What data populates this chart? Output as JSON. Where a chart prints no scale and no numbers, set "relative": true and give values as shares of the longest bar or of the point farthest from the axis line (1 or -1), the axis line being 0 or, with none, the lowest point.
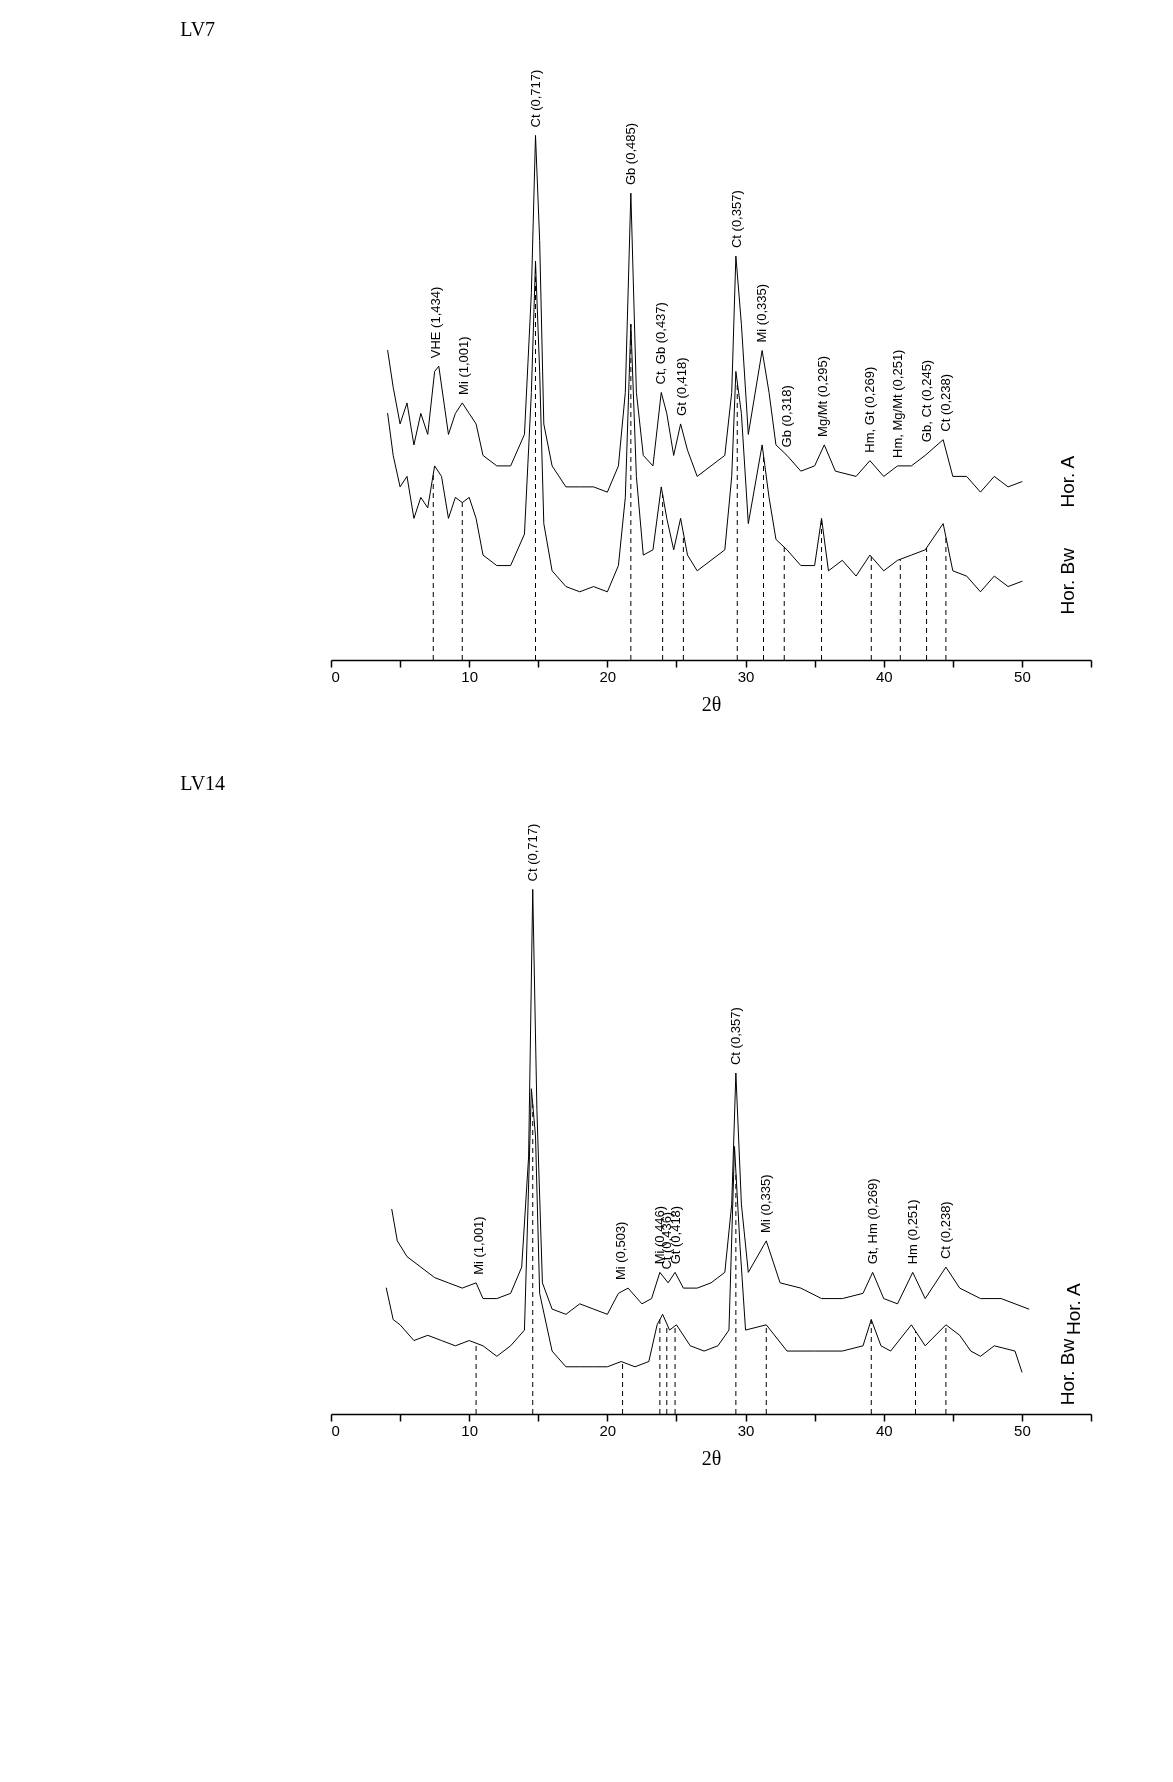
{
  "chart_data": [
    {
      "type": "line",
      "title": "LV7",
      "xlabel": "2θ",
      "relative": true,
      "grid": false,
      "legend": false,
      "xlim": [
        0,
        55
      ],
      "xticks": [
        0,
        {
          "value": 5,
          "label": null
        },
        10,
        {
          "value": 15,
          "label": null
        },
        20,
        {
          "value": 25,
          "label": null
        },
        30,
        {
          "value": 35,
          "label": null
        },
        40,
        {
          "value": 45,
          "label": null
        },
        50,
        {
          "value": 55,
          "label": null
        }
      ],
      "series": [
        {
          "name": "Hor. A",
          "color": "#000000",
          "x": [
            4.1,
            4.5,
            5,
            5.5,
            6,
            6.5,
            7,
            7.5,
            7.8,
            8.5,
            9,
            9.5,
            10,
            10.5,
            11,
            12,
            13,
            14,
            14.5,
            14.8,
            15.1,
            15.4,
            16,
            17,
            18,
            19,
            20,
            20.8,
            21.3,
            21.7,
            22.1,
            22.6,
            23.3,
            23.9,
            24.3,
            24.8,
            25.3,
            25.8,
            26.5,
            27.5,
            28.5,
            29,
            29.3,
            29.7,
            30.2,
            31.2,
            31.7,
            32.2,
            33,
            34,
            35,
            35.7,
            36.5,
            38,
            39,
            40,
            41,
            42,
            43,
            44.3,
            45,
            46,
            47,
            48,
            49,
            50
          ],
          "values": [
            0.59,
            0.52,
            0.45,
            0.49,
            0.41,
            0.47,
            0.43,
            0.55,
            0.56,
            0.43,
            0.47,
            0.49,
            0.47,
            0.45,
            0.39,
            0.37,
            0.37,
            0.43,
            0.7,
            1.0,
            0.8,
            0.45,
            0.37,
            0.33,
            0.33,
            0.33,
            0.32,
            0.37,
            0.51,
            0.89,
            0.51,
            0.39,
            0.37,
            0.51,
            0.47,
            0.39,
            0.45,
            0.4,
            0.35,
            0.37,
            0.39,
            0.51,
            0.77,
            0.64,
            0.43,
            0.59,
            0.51,
            0.41,
            0.39,
            0.36,
            0.37,
            0.41,
            0.36,
            0.35,
            0.38,
            0.35,
            0.37,
            0.37,
            0.39,
            0.42,
            0.35,
            0.35,
            0.32,
            0.35,
            0.33,
            0.34
          ]
        },
        {
          "name": "Hor. Bw",
          "color": "#000000",
          "x": [
            4.1,
            4.5,
            5,
            5.5,
            6,
            6.5,
            7,
            7.5,
            8,
            8.5,
            9,
            9.5,
            10,
            10.5,
            11,
            12,
            13,
            14,
            14.5,
            14.8,
            15.1,
            15.4,
            16,
            17,
            18,
            19,
            20,
            20.8,
            21.3,
            21.7,
            22.1,
            22.6,
            23.3,
            23.9,
            24.3,
            24.8,
            25.3,
            25.8,
            26.5,
            27.5,
            28.5,
            29,
            29.3,
            29.7,
            30.2,
            31.2,
            31.7,
            32.2,
            33,
            34,
            35,
            35.5,
            36,
            37,
            38,
            39,
            40,
            41,
            42,
            43,
            44.3,
            45,
            46,
            47,
            48,
            49,
            50
          ],
          "values": [
            0.47,
            0.39,
            0.33,
            0.35,
            0.27,
            0.31,
            0.29,
            0.37,
            0.35,
            0.27,
            0.31,
            0.3,
            0.31,
            0.27,
            0.2,
            0.18,
            0.18,
            0.24,
            0.51,
            0.76,
            0.55,
            0.26,
            0.17,
            0.14,
            0.13,
            0.14,
            0.13,
            0.18,
            0.31,
            0.64,
            0.35,
            0.2,
            0.21,
            0.33,
            0.27,
            0.21,
            0.27,
            0.2,
            0.17,
            0.19,
            0.21,
            0.35,
            0.55,
            0.47,
            0.26,
            0.41,
            0.31,
            0.23,
            0.21,
            0.18,
            0.18,
            0.27,
            0.17,
            0.19,
            0.16,
            0.2,
            0.17,
            0.19,
            0.2,
            0.21,
            0.26,
            0.17,
            0.16,
            0.13,
            0.16,
            0.14,
            0.15
          ]
        }
      ],
      "annotations": [
        {
          "text": "VHE (1,434)",
          "x": 7.6,
          "y": 0.56
        },
        {
          "text": "Mi (1,001)",
          "x": 9.6,
          "y": 0.49
        },
        {
          "text": "Ct (0,717)",
          "x": 14.8,
          "y": 1.0
        },
        {
          "text": "Gb (0,485)",
          "x": 21.7,
          "y": 0.89
        },
        {
          "text": "Ct, Gb (0,437)",
          "x": 23.9,
          "y": 0.51
        },
        {
          "text": "Gt (0,418)",
          "x": 25.4,
          "y": 0.45
        },
        {
          "text": "Ct (0,357)",
          "x": 29.4,
          "y": 0.77
        },
        {
          "text": "Mi (0,335)",
          "x": 31.2,
          "y": 0.59
        },
        {
          "text": "Gb (0,318)",
          "x": 33,
          "y": 0.39
        },
        {
          "text": "Mg/Mt (0,295)",
          "x": 35.6,
          "y": 0.41
        },
        {
          "text": "Hm, Gt (0,269)",
          "x": 39,
          "y": 0.38
        },
        {
          "text": "Hm, Mg/Mt (0,251)",
          "x": 41,
          "y": 0.37
        },
        {
          "text": "Gb, Ct (0,245)",
          "x": 43.1,
          "y": 0.4
        },
        {
          "text": "Ct (0,238)",
          "x": 44.5,
          "y": 0.42
        }
      ],
      "ref_lines": [
        {
          "axis": "x",
          "value": 7.4,
          "line_style": "dashed"
        },
        {
          "axis": "x",
          "value": 9.5,
          "line_style": "dashed"
        },
        {
          "axis": "x",
          "value": 14.8,
          "line_style": "dashed"
        },
        {
          "axis": "x",
          "value": 21.7,
          "line_style": "dashed"
        },
        {
          "axis": "x",
          "value": 24.0,
          "line_style": "dashed"
        },
        {
          "axis": "x",
          "value": 25.5,
          "line_style": "dashed"
        },
        {
          "axis": "x",
          "value": 29.4,
          "line_style": "dashed"
        },
        {
          "axis": "x",
          "value": 31.3,
          "line_style": "dashed"
        },
        {
          "axis": "x",
          "value": 32.8,
          "line_style": "dashed"
        },
        {
          "axis": "x",
          "value": 35.5,
          "line_style": "dashed"
        },
        {
          "axis": "x",
          "value": 39.1,
          "line_style": "dashed"
        },
        {
          "axis": "x",
          "value": 41.2,
          "line_style": "dashed"
        },
        {
          "axis": "x",
          "value": 43.1,
          "line_style": "dashed"
        },
        {
          "axis": "x",
          "value": 44.5,
          "line_style": "dashed"
        }
      ]
    },
    {
      "type": "line",
      "title": "LV14",
      "xlabel": "2θ",
      "relative": true,
      "grid": false,
      "legend": false,
      "xlim": [
        0,
        55
      ],
      "xticks": [
        0,
        {
          "value": 5,
          "label": null
        },
        10,
        {
          "value": 15,
          "label": null
        },
        20,
        {
          "value": 25,
          "label": null
        },
        30,
        {
          "value": 35,
          "label": null
        },
        40,
        {
          "value": 45,
          "label": null
        },
        50,
        {
          "value": 55,
          "label": null
        }
      ],
      "series": [
        {
          "name": "Hor. A",
          "color": "#000000",
          "x": [
            4.4,
            4.8,
            5.5,
            6.5,
            7.5,
            8.5,
            9.5,
            10.5,
            11,
            12,
            13,
            13.8,
            14.3,
            14.6,
            14.9,
            15.3,
            16,
            17,
            18,
            19,
            20,
            20.8,
            21.5,
            22.5,
            23.2,
            23.8,
            24.4,
            24.9,
            25.5,
            26.5,
            27.5,
            28.5,
            29,
            29.3,
            29.7,
            30.2,
            31.5,
            32.5,
            34,
            35.5,
            37,
            38.5,
            39.2,
            40,
            41,
            42.1,
            43,
            44.5,
            45.5,
            47,
            48.5,
            49.5,
            50.5
          ],
          "values": [
            0.39,
            0.33,
            0.3,
            0.28,
            0.26,
            0.25,
            0.24,
            0.25,
            0.22,
            0.22,
            0.23,
            0.28,
            0.49,
            1.0,
            0.58,
            0.25,
            0.2,
            0.19,
            0.21,
            0.2,
            0.19,
            0.23,
            0.24,
            0.21,
            0.22,
            0.27,
            0.25,
            0.27,
            0.24,
            0.24,
            0.25,
            0.27,
            0.4,
            0.65,
            0.4,
            0.27,
            0.33,
            0.25,
            0.24,
            0.22,
            0.22,
            0.23,
            0.27,
            0.22,
            0.21,
            0.27,
            0.22,
            0.28,
            0.24,
            0.22,
            0.22,
            0.21,
            0.2
          ]
        },
        {
          "name": "Hor. Bw",
          "color": "#000000",
          "x": [
            4,
            4.5,
            5,
            6,
            7,
            8,
            9,
            10,
            11,
            12,
            13,
            14,
            14.5,
            14.8,
            15.1,
            16,
            17,
            18,
            19,
            20,
            21,
            22,
            23,
            23.6,
            24,
            24.5,
            25,
            26,
            27,
            28,
            28.8,
            29.2,
            29.6,
            30,
            31.5,
            33,
            35,
            37,
            38.5,
            39.1,
            39.8,
            40.5,
            42,
            43,
            44.5,
            45.5,
            46.3,
            47,
            48,
            49.5,
            50
          ],
          "values": [
            0.24,
            0.18,
            0.17,
            0.14,
            0.15,
            0.14,
            0.13,
            0.14,
            0.13,
            0.11,
            0.13,
            0.16,
            0.62,
            0.53,
            0.23,
            0.12,
            0.09,
            0.09,
            0.09,
            0.09,
            0.1,
            0.09,
            0.1,
            0.17,
            0.19,
            0.16,
            0.17,
            0.13,
            0.12,
            0.13,
            0.16,
            0.51,
            0.32,
            0.16,
            0.17,
            0.12,
            0.12,
            0.12,
            0.13,
            0.18,
            0.13,
            0.12,
            0.17,
            0.13,
            0.17,
            0.15,
            0.12,
            0.11,
            0.13,
            0.12,
            0.08
          ]
        }
      ],
      "annotations": [
        {
          "text": "Mi (1,001)",
          "x": 10.7,
          "y": 0.25
        },
        {
          "text": "Ct (0,717)",
          "x": 14.6,
          "y": 1.0
        },
        {
          "text": "Mi (0,503)",
          "x": 21.0,
          "y": 0.24
        },
        {
          "text": "Mi (0,446)",
          "x": 23.8,
          "y": 0.27
        },
        {
          "text": "Ct (0,436)",
          "x": 24.3,
          "y": 0.26
        },
        {
          "text": "Gt (0,418)",
          "x": 25.0,
          "y": 0.27
        },
        {
          "text": "Ct (0,357)",
          "x": 29.3,
          "y": 0.65
        },
        {
          "text": "Mi (0,335)",
          "x": 31.5,
          "y": 0.33
        },
        {
          "text": "Gt, Hm (0,269)",
          "x": 39.2,
          "y": 0.27
        },
        {
          "text": "Hm (0,251)",
          "x": 42.1,
          "y": 0.27
        },
        {
          "text": "Ct (0,238)",
          "x": 44.5,
          "y": 0.28
        }
      ],
      "ref_lines": [
        {
          "axis": "x",
          "value": 10.5,
          "line_style": "dashed"
        },
        {
          "axis": "x",
          "value": 14.6,
          "line_style": "dashed"
        },
        {
          "axis": "x",
          "value": 21.1,
          "line_style": "dashed"
        },
        {
          "axis": "x",
          "value": 23.8,
          "line_style": "dashed"
        },
        {
          "axis": "x",
          "value": 24.3,
          "line_style": "dashed"
        },
        {
          "axis": "x",
          "value": 24.9,
          "line_style": "dashed"
        },
        {
          "axis": "x",
          "value": 29.3,
          "line_style": "dashed"
        },
        {
          "axis": "x",
          "value": 31.5,
          "line_style": "dashed"
        },
        {
          "axis": "x",
          "value": 39.1,
          "line_style": "dashed"
        },
        {
          "axis": "x",
          "value": 42.3,
          "line_style": "dashed"
        },
        {
          "axis": "x",
          "value": 44.5,
          "line_style": "dashed"
        }
      ]
    }
  ]
}
